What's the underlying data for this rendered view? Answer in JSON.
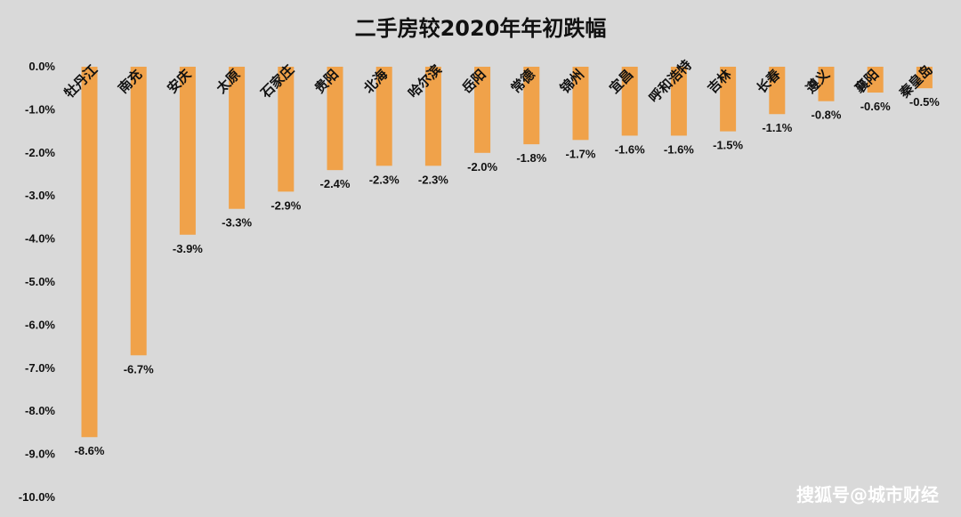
{
  "chart_data": {
    "type": "bar",
    "title": "二手房较2020年年初跌幅",
    "categories": [
      "牡丹江",
      "南充",
      "安庆",
      "太原",
      "石家庄",
      "贵阳",
      "北海",
      "哈尔滨",
      "岳阳",
      "常德",
      "锦州",
      "宜昌",
      "呼和浩特",
      "吉林",
      "长春",
      "遵义",
      "襄阳",
      "秦皇岛"
    ],
    "values": [
      -8.6,
      -6.7,
      -3.9,
      -3.3,
      -2.9,
      -2.4,
      -2.3,
      -2.3,
      -2.0,
      -1.8,
      -1.7,
      -1.6,
      -1.6,
      -1.5,
      -1.1,
      -0.8,
      -0.6,
      -0.5
    ],
    "data_labels": [
      "-8.6%",
      "-6.7%",
      "-3.9%",
      "-3.3%",
      "-2.9%",
      "-2.4%",
      "-2.3%",
      "-2.3%",
      "-2.0%",
      "-1.8%",
      "-1.7%",
      "-1.6%",
      "-1.6%",
      "-1.5%",
      "-1.1%",
      "-0.8%",
      "-0.6%",
      "-0.5%"
    ],
    "y_ticks": [
      "0.0%",
      "-1.0%",
      "-2.0%",
      "-3.0%",
      "-4.0%",
      "-5.0%",
      "-6.0%",
      "-7.0%",
      "-8.0%",
      "-9.0%",
      "-10.0%"
    ],
    "ylim": [
      -10,
      0
    ],
    "xlabel": "",
    "ylabel": "",
    "grid": false,
    "legend": "none",
    "bar_color": "#f0a24a",
    "background": "#d9d9d9"
  },
  "watermark": "搜狐号@城市财经"
}
